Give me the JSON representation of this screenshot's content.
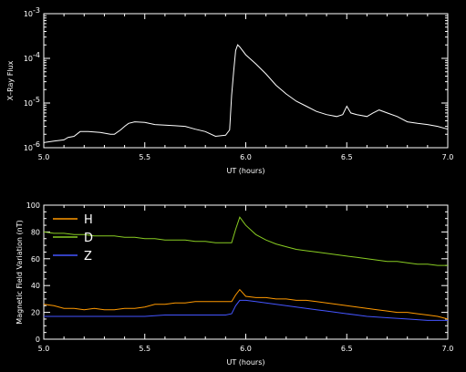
{
  "chart_data": [
    {
      "type": "line",
      "xlabel": "UT (hours)",
      "ylabel": "X–Ray Flux",
      "xlim": [
        5.0,
        7.0
      ],
      "ylim": [
        1e-06,
        0.001
      ],
      "yscale": "log",
      "xticks": [
        "5.0",
        "5.5",
        "6.0",
        "6.5",
        "7.0"
      ],
      "yticks": [
        {
          "base": "10",
          "exp": "-3",
          "value": 0.001
        },
        {
          "base": "10",
          "exp": "-4",
          "value": 0.0001
        },
        {
          "base": "10",
          "exp": "-5",
          "value": 1e-05
        },
        {
          "base": "10",
          "exp": "-6",
          "value": 1e-06
        }
      ],
      "series": [
        {
          "color": "#ffffff",
          "x": [
            5.0,
            5.05,
            5.1,
            5.12,
            5.15,
            5.18,
            5.22,
            5.28,
            5.33,
            5.35,
            5.38,
            5.4,
            5.42,
            5.45,
            5.5,
            5.55,
            5.6,
            5.65,
            5.7,
            5.75,
            5.8,
            5.85,
            5.9,
            5.92,
            5.93,
            5.94,
            5.95,
            5.96,
            5.97,
            6.0,
            6.05,
            6.1,
            6.15,
            6.2,
            6.25,
            6.3,
            6.35,
            6.4,
            6.45,
            6.48,
            6.5,
            6.52,
            6.55,
            6.6,
            6.63,
            6.66,
            6.7,
            6.75,
            6.8,
            6.85,
            6.9,
            6.95,
            7.0
          ],
          "values": [
            1.3e-06,
            1.4e-06,
            1.5e-06,
            1.7e-06,
            1.8e-06,
            2.3e-06,
            2.3e-06,
            2.2e-06,
            2e-06,
            2e-06,
            2.5e-06,
            3e-06,
            3.5e-06,
            3.8e-06,
            3.7e-06,
            3.3e-06,
            3.2e-06,
            3.1e-06,
            3e-06,
            2.6e-06,
            2.3e-06,
            1.8e-06,
            1.9e-06,
            2.5e-06,
            1.5e-05,
            5e-05,
            0.00015,
            0.0002,
            0.00018,
            0.00012,
            7.5e-05,
            4.5e-05,
            2.5e-05,
            1.6e-05,
            1.1e-05,
            8.5e-06,
            6.5e-06,
            5.5e-06,
            5e-06,
            5.5e-06,
            8.5e-06,
            6e-06,
            5.5e-06,
            5e-06,
            6e-06,
            7e-06,
            6e-06,
            5e-06,
            3.8e-06,
            3.5e-06,
            3.3e-06,
            3e-06,
            2.6e-06
          ]
        }
      ]
    },
    {
      "type": "line",
      "xlabel": "UT (hours)",
      "ylabel": "Magnetic Field Variation (nT)",
      "xlim": [
        5.0,
        7.0
      ],
      "ylim": [
        0,
        100
      ],
      "xticks": [
        "5.0",
        "5.5",
        "6.0",
        "6.5",
        "7.0"
      ],
      "yticks": [
        "0",
        "20",
        "40",
        "60",
        "80",
        "100"
      ],
      "legend": "top-left",
      "series": [
        {
          "name": "H",
          "color": "#ff9900",
          "x": [
            5.0,
            5.05,
            5.1,
            5.15,
            5.2,
            5.25,
            5.3,
            5.35,
            5.4,
            5.45,
            5.5,
            5.55,
            5.6,
            5.65,
            5.7,
            5.75,
            5.8,
            5.85,
            5.9,
            5.93,
            5.95,
            5.97,
            6.0,
            6.05,
            6.1,
            6.15,
            6.2,
            6.25,
            6.3,
            6.35,
            6.4,
            6.45,
            6.5,
            6.55,
            6.6,
            6.65,
            6.7,
            6.75,
            6.8,
            6.85,
            6.9,
            6.95,
            7.0
          ],
          "values": [
            26,
            25,
            23,
            23,
            22,
            23,
            22,
            22,
            23,
            23,
            24,
            26,
            26,
            27,
            27,
            28,
            28,
            28,
            28,
            28,
            33,
            37,
            32,
            31,
            31,
            30,
            30,
            29,
            29,
            28,
            27,
            26,
            25,
            24,
            23,
            22,
            21,
            20,
            20,
            19,
            18,
            17,
            15
          ]
        },
        {
          "name": "D",
          "color": "#88cc22",
          "x": [
            5.0,
            5.05,
            5.1,
            5.15,
            5.2,
            5.25,
            5.3,
            5.35,
            5.4,
            5.45,
            5.5,
            5.55,
            5.6,
            5.65,
            5.7,
            5.75,
            5.8,
            5.85,
            5.9,
            5.93,
            5.95,
            5.97,
            6.0,
            6.05,
            6.1,
            6.15,
            6.2,
            6.25,
            6.3,
            6.35,
            6.4,
            6.45,
            6.5,
            6.55,
            6.6,
            6.65,
            6.7,
            6.75,
            6.8,
            6.85,
            6.9,
            6.95,
            7.0
          ],
          "values": [
            80,
            79,
            79,
            78,
            78,
            77,
            77,
            77,
            76,
            76,
            75,
            75,
            74,
            74,
            74,
            73,
            73,
            72,
            72,
            72,
            82,
            91,
            85,
            78,
            74,
            71,
            69,
            67,
            66,
            65,
            64,
            63,
            62,
            61,
            60,
            59,
            58,
            58,
            57,
            56,
            56,
            55,
            55
          ]
        },
        {
          "name": "Z",
          "color": "#4455ff",
          "x": [
            5.0,
            5.1,
            5.2,
            5.3,
            5.4,
            5.5,
            5.6,
            5.7,
            5.8,
            5.9,
            5.93,
            5.95,
            5.97,
            6.0,
            6.05,
            6.1,
            6.15,
            6.2,
            6.25,
            6.3,
            6.35,
            6.4,
            6.45,
            6.5,
            6.55,
            6.6,
            6.7,
            6.8,
            6.9,
            7.0
          ],
          "values": [
            17,
            17,
            17,
            17,
            17,
            17,
            18,
            18,
            18,
            18,
            19,
            25,
            29,
            29,
            28,
            27,
            26,
            25,
            24,
            23,
            22,
            21,
            20,
            19,
            18,
            17,
            16,
            15,
            14,
            14
          ]
        }
      ]
    }
  ]
}
